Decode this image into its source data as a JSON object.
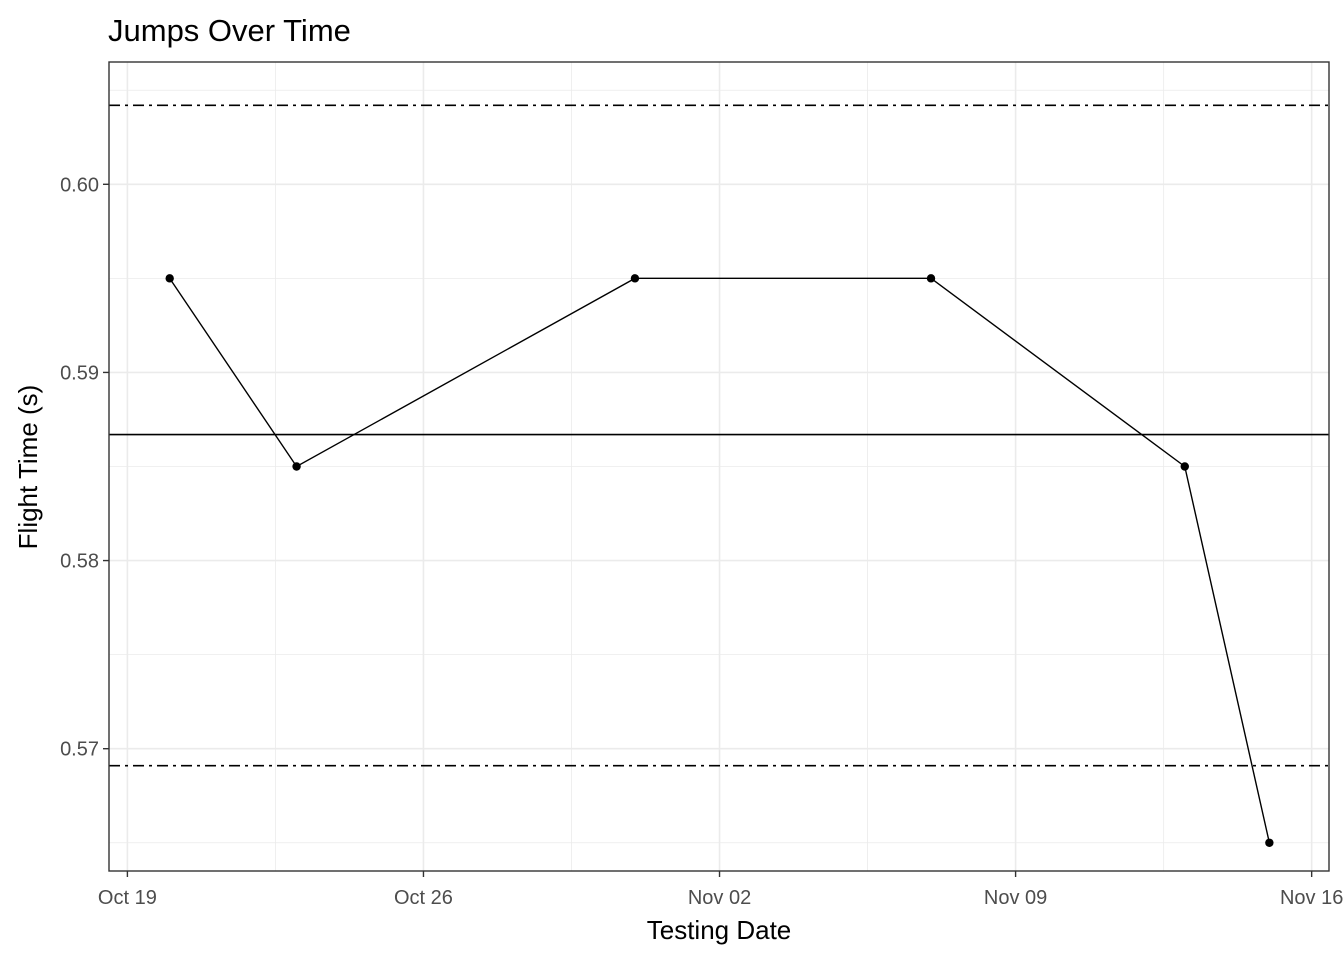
{
  "chart_data": {
    "type": "line",
    "title": "Jumps Over Time",
    "xlabel": "Testing Date",
    "ylabel": "Flight Time (s)",
    "x_type": "date",
    "xlim": [
      "2020-10-19",
      "2020-11-16"
    ],
    "ylim": [
      0.5635,
      0.6065
    ],
    "x_ticks": [
      {
        "value": "2020-10-19",
        "label": "Oct 19"
      },
      {
        "value": "2020-10-26",
        "label": "Oct 26"
      },
      {
        "value": "2020-11-02",
        "label": "Nov 02"
      },
      {
        "value": "2020-11-09",
        "label": "Nov 09"
      },
      {
        "value": "2020-11-16",
        "label": "Nov 16"
      }
    ],
    "y_ticks": [
      {
        "value": 0.57,
        "label": "0.57"
      },
      {
        "value": 0.58,
        "label": "0.58"
      },
      {
        "value": 0.59,
        "label": "0.59"
      },
      {
        "value": 0.6,
        "label": "0.60"
      }
    ],
    "series": [
      {
        "x": [
          "2020-10-20",
          "2020-10-23",
          "2020-10-31",
          "2020-11-07",
          "2020-11-13",
          "2020-11-15"
        ],
        "y": [
          0.595,
          0.585,
          0.595,
          0.595,
          0.585,
          0.565
        ]
      }
    ],
    "reference_lines": [
      {
        "y": 0.6042,
        "style": "dashdot"
      },
      {
        "y": 0.5867,
        "style": "solid"
      },
      {
        "y": 0.5691,
        "style": "dashdot"
      }
    ],
    "grid": true,
    "theme": "bw",
    "line_color": "#000000",
    "grid_color": "#ebebeb"
  }
}
